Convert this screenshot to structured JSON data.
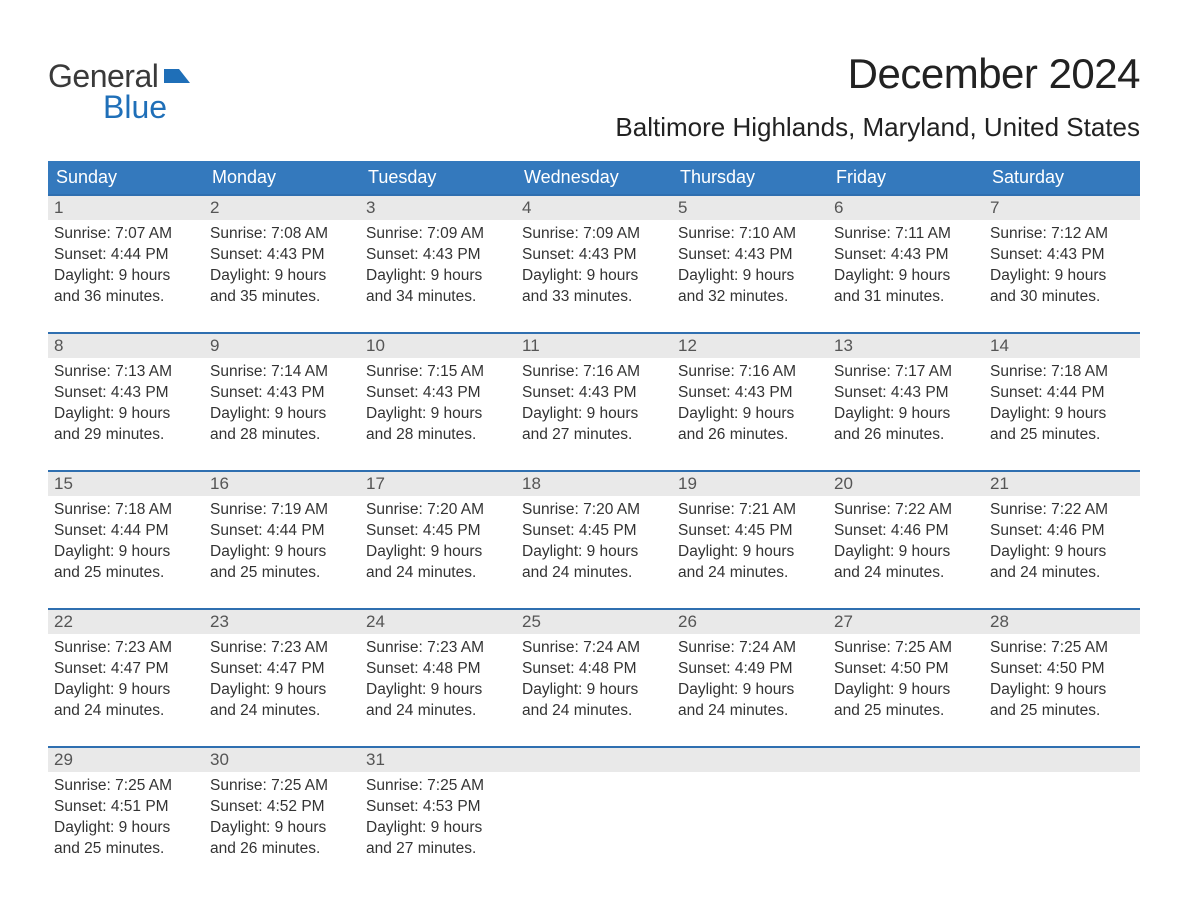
{
  "colors": {
    "header_bg": "#3479bd",
    "header_text": "#ffffff",
    "daynum_bg": "#e9e9e9",
    "week_border": "#2f6fb0",
    "logo_general": "#3a3a3a",
    "logo_blue": "#1f6fb8",
    "flag": "#1f6fb8"
  },
  "logo": {
    "general": "General",
    "blue": "Blue"
  },
  "title": "December 2024",
  "location": "Baltimore Highlands, Maryland, United States",
  "day_headers": [
    "Sunday",
    "Monday",
    "Tuesday",
    "Wednesday",
    "Thursday",
    "Friday",
    "Saturday"
  ],
  "weeks": [
    [
      {
        "n": "1",
        "sr": "Sunrise: 7:07 AM",
        "ss": "Sunset: 4:44 PM",
        "dl": "Daylight: 9 hours and 36 minutes."
      },
      {
        "n": "2",
        "sr": "Sunrise: 7:08 AM",
        "ss": "Sunset: 4:43 PM",
        "dl": "Daylight: 9 hours and 35 minutes."
      },
      {
        "n": "3",
        "sr": "Sunrise: 7:09 AM",
        "ss": "Sunset: 4:43 PM",
        "dl": "Daylight: 9 hours and 34 minutes."
      },
      {
        "n": "4",
        "sr": "Sunrise: 7:09 AM",
        "ss": "Sunset: 4:43 PM",
        "dl": "Daylight: 9 hours and 33 minutes."
      },
      {
        "n": "5",
        "sr": "Sunrise: 7:10 AM",
        "ss": "Sunset: 4:43 PM",
        "dl": "Daylight: 9 hours and 32 minutes."
      },
      {
        "n": "6",
        "sr": "Sunrise: 7:11 AM",
        "ss": "Sunset: 4:43 PM",
        "dl": "Daylight: 9 hours and 31 minutes."
      },
      {
        "n": "7",
        "sr": "Sunrise: 7:12 AM",
        "ss": "Sunset: 4:43 PM",
        "dl": "Daylight: 9 hours and 30 minutes."
      }
    ],
    [
      {
        "n": "8",
        "sr": "Sunrise: 7:13 AM",
        "ss": "Sunset: 4:43 PM",
        "dl": "Daylight: 9 hours and 29 minutes."
      },
      {
        "n": "9",
        "sr": "Sunrise: 7:14 AM",
        "ss": "Sunset: 4:43 PM",
        "dl": "Daylight: 9 hours and 28 minutes."
      },
      {
        "n": "10",
        "sr": "Sunrise: 7:15 AM",
        "ss": "Sunset: 4:43 PM",
        "dl": "Daylight: 9 hours and 28 minutes."
      },
      {
        "n": "11",
        "sr": "Sunrise: 7:16 AM",
        "ss": "Sunset: 4:43 PM",
        "dl": "Daylight: 9 hours and 27 minutes."
      },
      {
        "n": "12",
        "sr": "Sunrise: 7:16 AM",
        "ss": "Sunset: 4:43 PM",
        "dl": "Daylight: 9 hours and 26 minutes."
      },
      {
        "n": "13",
        "sr": "Sunrise: 7:17 AM",
        "ss": "Sunset: 4:43 PM",
        "dl": "Daylight: 9 hours and 26 minutes."
      },
      {
        "n": "14",
        "sr": "Sunrise: 7:18 AM",
        "ss": "Sunset: 4:44 PM",
        "dl": "Daylight: 9 hours and 25 minutes."
      }
    ],
    [
      {
        "n": "15",
        "sr": "Sunrise: 7:18 AM",
        "ss": "Sunset: 4:44 PM",
        "dl": "Daylight: 9 hours and 25 minutes."
      },
      {
        "n": "16",
        "sr": "Sunrise: 7:19 AM",
        "ss": "Sunset: 4:44 PM",
        "dl": "Daylight: 9 hours and 25 minutes."
      },
      {
        "n": "17",
        "sr": "Sunrise: 7:20 AM",
        "ss": "Sunset: 4:45 PM",
        "dl": "Daylight: 9 hours and 24 minutes."
      },
      {
        "n": "18",
        "sr": "Sunrise: 7:20 AM",
        "ss": "Sunset: 4:45 PM",
        "dl": "Daylight: 9 hours and 24 minutes."
      },
      {
        "n": "19",
        "sr": "Sunrise: 7:21 AM",
        "ss": "Sunset: 4:45 PM",
        "dl": "Daylight: 9 hours and 24 minutes."
      },
      {
        "n": "20",
        "sr": "Sunrise: 7:22 AM",
        "ss": "Sunset: 4:46 PM",
        "dl": "Daylight: 9 hours and 24 minutes."
      },
      {
        "n": "21",
        "sr": "Sunrise: 7:22 AM",
        "ss": "Sunset: 4:46 PM",
        "dl": "Daylight: 9 hours and 24 minutes."
      }
    ],
    [
      {
        "n": "22",
        "sr": "Sunrise: 7:23 AM",
        "ss": "Sunset: 4:47 PM",
        "dl": "Daylight: 9 hours and 24 minutes."
      },
      {
        "n": "23",
        "sr": "Sunrise: 7:23 AM",
        "ss": "Sunset: 4:47 PM",
        "dl": "Daylight: 9 hours and 24 minutes."
      },
      {
        "n": "24",
        "sr": "Sunrise: 7:23 AM",
        "ss": "Sunset: 4:48 PM",
        "dl": "Daylight: 9 hours and 24 minutes."
      },
      {
        "n": "25",
        "sr": "Sunrise: 7:24 AM",
        "ss": "Sunset: 4:48 PM",
        "dl": "Daylight: 9 hours and 24 minutes."
      },
      {
        "n": "26",
        "sr": "Sunrise: 7:24 AM",
        "ss": "Sunset: 4:49 PM",
        "dl": "Daylight: 9 hours and 24 minutes."
      },
      {
        "n": "27",
        "sr": "Sunrise: 7:25 AM",
        "ss": "Sunset: 4:50 PM",
        "dl": "Daylight: 9 hours and 25 minutes."
      },
      {
        "n": "28",
        "sr": "Sunrise: 7:25 AM",
        "ss": "Sunset: 4:50 PM",
        "dl": "Daylight: 9 hours and 25 minutes."
      }
    ],
    [
      {
        "n": "29",
        "sr": "Sunrise: 7:25 AM",
        "ss": "Sunset: 4:51 PM",
        "dl": "Daylight: 9 hours and 25 minutes."
      },
      {
        "n": "30",
        "sr": "Sunrise: 7:25 AM",
        "ss": "Sunset: 4:52 PM",
        "dl": "Daylight: 9 hours and 26 minutes."
      },
      {
        "n": "31",
        "sr": "Sunrise: 7:25 AM",
        "ss": "Sunset: 4:53 PM",
        "dl": "Daylight: 9 hours and 27 minutes."
      },
      null,
      null,
      null,
      null
    ]
  ]
}
